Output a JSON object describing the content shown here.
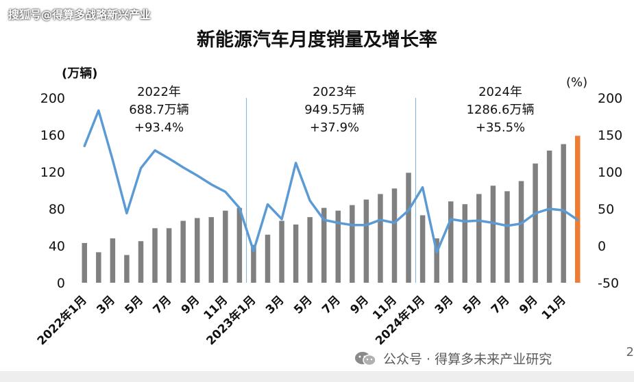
{
  "source_label": "搜狐号@得算多战略新兴产业",
  "footer_label": "公众号 · 得算多未来产业研究",
  "page_number": "2",
  "chart_data": {
    "type": "bar",
    "title": "新能源汽车月度销量及增长率",
    "left_unit": "(万辆)",
    "right_unit": "(%)",
    "left_ylim": [
      0,
      200
    ],
    "right_ylim": [
      -50,
      200
    ],
    "left_ticks": [
      "0",
      "40",
      "80",
      "120",
      "160",
      "200"
    ],
    "right_ticks": [
      "-50",
      "0",
      "50",
      "100",
      "150",
      "200"
    ],
    "categories": [
      "2022年1月",
      "2月",
      "3月",
      "4月",
      "5月",
      "6月",
      "7月",
      "8月",
      "9月",
      "10月",
      "11月",
      "12月",
      "2023年1月",
      "2月",
      "3月",
      "4月",
      "5月",
      "6月",
      "7月",
      "8月",
      "9月",
      "10月",
      "11月",
      "12月",
      "2024年1月",
      "2月",
      "3月",
      "4月",
      "5月",
      "6月",
      "7月",
      "8月",
      "9月",
      "10月",
      "11月",
      "12月"
    ],
    "x_tick_labels": [
      "2022年1月",
      "",
      "3月",
      "",
      "5月",
      "",
      "7月",
      "",
      "9月",
      "",
      "11月",
      "",
      "2023年1月",
      "",
      "3月",
      "",
      "5月",
      "",
      "7月",
      "",
      "9月",
      "",
      "11月",
      "",
      "2024年1月",
      "",
      "3月",
      "",
      "5月",
      "",
      "7月",
      "",
      "9月",
      "",
      "11月",
      ""
    ],
    "series": [
      {
        "type": "bar",
        "axis": "left",
        "color": "#808080",
        "values": [
          43,
          33,
          48,
          30,
          45,
          59,
          59,
          67,
          70,
          71,
          78,
          81,
          41,
          52,
          67,
          63,
          71,
          81,
          78,
          84,
          90,
          96,
          102,
          119,
          73,
          48,
          88,
          85,
          96,
          105,
          99,
          110,
          129,
          143,
          150,
          159
        ],
        "highlight_last_color": "#ed7d31"
      },
      {
        "type": "line",
        "axis": "right",
        "color": "#5b9bd5",
        "values": [
          135,
          183,
          116,
          44,
          105,
          129,
          118,
          106,
          95,
          83,
          73,
          51,
          -7,
          56,
          36,
          112,
          61,
          35,
          31,
          28,
          28,
          35,
          31,
          48,
          79,
          -9,
          36,
          33,
          34,
          31,
          27,
          30,
          44,
          50,
          48,
          35
        ]
      }
    ],
    "annotations": [
      {
        "year": "2022年",
        "total": "688.7万辆",
        "growth": "+93.4%"
      },
      {
        "year": "2023年",
        "total": "949.5万辆",
        "growth": "+37.9%"
      },
      {
        "year": "2024年",
        "total": "1286.6万辆",
        "growth": "+35.5%"
      }
    ]
  }
}
